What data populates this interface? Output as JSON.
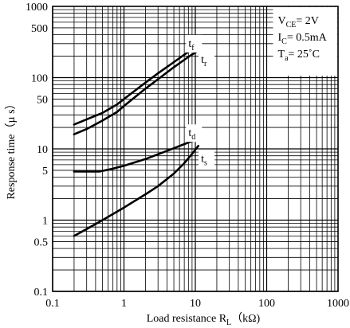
{
  "chart_data": {
    "type": "line",
    "x_scale": "log",
    "y_scale": "log",
    "xlim": [
      0.1,
      1000
    ],
    "ylim": [
      0.1,
      1000
    ],
    "grid": true,
    "xlabel": {
      "main": "Load resistance R",
      "sub": "L",
      "unit": "（kΩ)"
    },
    "ylabel": "Response time（µ s）",
    "x_ticks": [
      {
        "value": 0.1,
        "label": "0.1"
      },
      {
        "value": 1,
        "label": "1"
      },
      {
        "value": 10,
        "label": "10"
      },
      {
        "value": 100,
        "label": "100"
      },
      {
        "value": 1000,
        "label": "1000"
      }
    ],
    "y_ticks": [
      {
        "value": 0.1,
        "label": "0.1"
      },
      {
        "value": 0.5,
        "label": "0.5"
      },
      {
        "value": 1,
        "label": "1"
      },
      {
        "value": 5,
        "label": "5"
      },
      {
        "value": 10,
        "label": "10"
      },
      {
        "value": 50,
        "label": "50"
      },
      {
        "value": 100,
        "label": "100"
      },
      {
        "value": 500,
        "label": "500"
      },
      {
        "value": 1000,
        "label": "1000"
      }
    ],
    "conditions": [
      {
        "main": "V",
        "sub": "CE",
        "rest": "= 2V"
      },
      {
        "main": "I",
        "sub": "C",
        "rest": "= 0.5mA"
      },
      {
        "main": "T",
        "sub": "a",
        "rest": "= 25˚C"
      }
    ],
    "series": [
      {
        "name": "t",
        "sub": "f",
        "label_at": [
          8,
          270
        ],
        "points": [
          [
            0.2,
            22
          ],
          [
            0.3,
            26
          ],
          [
            0.5,
            32
          ],
          [
            0.8,
            42
          ],
          [
            1,
            50
          ],
          [
            2,
            85
          ],
          [
            3,
            115
          ],
          [
            5,
            165
          ],
          [
            8,
            230
          ],
          [
            11,
            290
          ]
        ]
      },
      {
        "name": "t",
        "sub": "r",
        "label_at": [
          12,
          160
        ],
        "points": [
          [
            0.2,
            16
          ],
          [
            0.3,
            19
          ],
          [
            0.5,
            25
          ],
          [
            0.8,
            33
          ],
          [
            1,
            40
          ],
          [
            2,
            70
          ],
          [
            3,
            95
          ],
          [
            5,
            140
          ],
          [
            8,
            195
          ],
          [
            11,
            240
          ]
        ]
      },
      {
        "name": "t",
        "sub": "d",
        "label_at": [
          8,
          15
        ],
        "points": [
          [
            0.2,
            4.8
          ],
          [
            0.3,
            4.8
          ],
          [
            0.45,
            4.8
          ],
          [
            0.6,
            5.1
          ],
          [
            1,
            5.8
          ],
          [
            2,
            7.2
          ],
          [
            3,
            8.4
          ],
          [
            5,
            10.2
          ],
          [
            8,
            12.3
          ],
          [
            11,
            13.6
          ]
        ]
      },
      {
        "name": "t",
        "sub": "s",
        "label_at": [
          12,
          6.5
        ],
        "points": [
          [
            0.2,
            0.6
          ],
          [
            0.3,
            0.75
          ],
          [
            0.5,
            1.0
          ],
          [
            1,
            1.5
          ],
          [
            2,
            2.3
          ],
          [
            3,
            3.0
          ],
          [
            5,
            4.5
          ],
          [
            7,
            6.3
          ],
          [
            9,
            8.5
          ],
          [
            11,
            11
          ]
        ]
      }
    ]
  }
}
